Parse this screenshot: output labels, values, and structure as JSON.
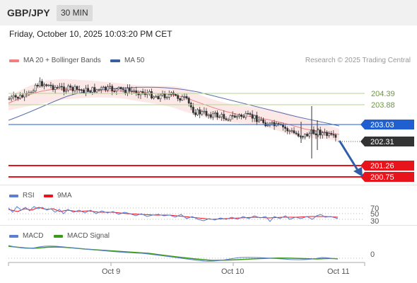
{
  "header": {
    "pair": "GBP/JPY",
    "timeframe": "30 MIN"
  },
  "datetime": "Friday, October 10, 2025 10:03:20 PM CET",
  "legend": {
    "items": [
      {
        "label": "MA 20 + Bollinger Bands",
        "color": "#f08080"
      },
      {
        "label": "MA 50",
        "color": "#3a5fa0"
      }
    ],
    "credit": "Research © 2025 Trading Central"
  },
  "levels": {
    "r2": {
      "label": "204.39",
      "color": "#8fbc5a"
    },
    "r1": {
      "label": "203.88",
      "color": "#8fbc5a"
    },
    "pivot": {
      "label": "203.03",
      "color": "#1f5fcf"
    },
    "last": {
      "label": "202.31",
      "color": "#333333"
    },
    "s1": {
      "label": "201.26",
      "color": "#e8141b"
    },
    "s2": {
      "label": "200.75",
      "color": "#e8141b"
    }
  },
  "rsi_panel": {
    "legend": [
      {
        "label": "RSI",
        "color": "#5b7fd6"
      },
      {
        "label": "9MA",
        "color": "#e8141b"
      }
    ],
    "ticks": [
      "70",
      "50",
      "30"
    ]
  },
  "macd_panel": {
    "legend": [
      {
        "label": "MACD",
        "color": "#5b7fd6"
      },
      {
        "label": "MACD Signal",
        "color": "#3a9a1a"
      }
    ],
    "ticks": [
      "0"
    ]
  },
  "x_axis": {
    "labels": [
      "Oct 9",
      "Oct 10",
      "Oct 11"
    ]
  }
}
